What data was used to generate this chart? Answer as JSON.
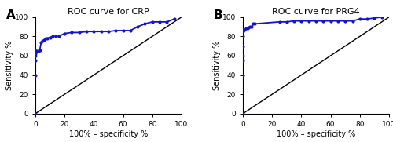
{
  "panel_A": {
    "title": "ROC curve for CRP",
    "label": "A",
    "roc_x": [
      0,
      0,
      0,
      0,
      0,
      0,
      0,
      0,
      0,
      0,
      1,
      2,
      3,
      4,
      5,
      6,
      7,
      8,
      10,
      12,
      14,
      16,
      20,
      25,
      30,
      35,
      40,
      45,
      50,
      55,
      60,
      65,
      70,
      75,
      80,
      85,
      90,
      95
    ],
    "roc_y": [
      0,
      40,
      55,
      60,
      62,
      63,
      64,
      65,
      65,
      65,
      65,
      65,
      66,
      74,
      75,
      76,
      78,
      78,
      79,
      80,
      80,
      80,
      83,
      84,
      84,
      85,
      85,
      85,
      85,
      86,
      86,
      86,
      90,
      93,
      95,
      95,
      95,
      98
    ],
    "xlabel": "100% – specificity %",
    "ylabel": "Sensitivity %",
    "xlim": [
      0,
      100
    ],
    "ylim": [
      0,
      100
    ],
    "xticks": [
      0,
      20,
      40,
      60,
      80,
      100
    ],
    "yticks": [
      0,
      20,
      40,
      60,
      80,
      100
    ],
    "line_color": "#1414CC",
    "dot_color": "#1414CC",
    "diagonal_color": "black"
  },
  "panel_B": {
    "title": "ROC curve for PRG4",
    "label": "B",
    "roc_x": [
      0,
      0,
      0,
      0,
      0,
      0,
      0,
      0,
      0,
      0,
      0,
      1,
      2,
      3,
      4,
      5,
      6,
      7,
      8,
      25,
      30,
      35,
      40,
      45,
      50,
      55,
      60,
      65,
      70,
      75,
      80,
      85,
      90,
      95
    ],
    "roc_y": [
      0,
      40,
      55,
      60,
      70,
      80,
      85,
      86,
      87,
      87,
      87,
      87,
      88,
      88,
      89,
      90,
      90,
      93,
      93,
      95,
      95,
      96,
      96,
      96,
      96,
      96,
      96,
      96,
      96,
      96,
      98,
      98,
      99,
      100
    ],
    "xlabel": "100% – specificity %",
    "ylabel": "Sensitivity %",
    "xlim": [
      0,
      100
    ],
    "ylim": [
      0,
      100
    ],
    "xticks": [
      0,
      20,
      40,
      60,
      80,
      100
    ],
    "yticks": [
      0,
      20,
      40,
      60,
      80,
      100
    ],
    "line_color": "#1414CC",
    "dot_color": "#1414CC",
    "diagonal_color": "black"
  },
  "fig_width": 5.0,
  "fig_height": 1.81,
  "dpi": 100
}
